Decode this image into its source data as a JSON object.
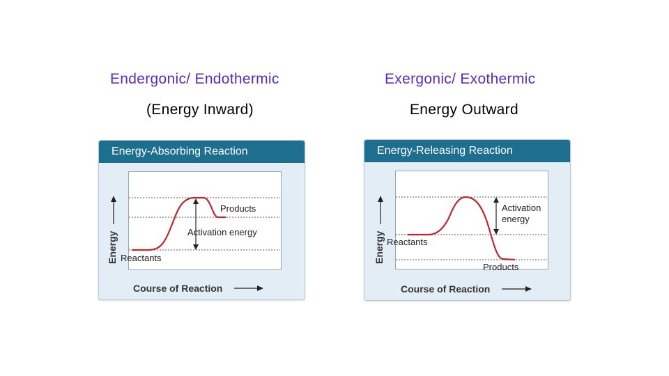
{
  "headings": {
    "left_title": "Endergonic/ Endothermic",
    "left_subtitle": "(Energy Inward)",
    "right_title": "Exergonic/ Exothermic",
    "right_subtitle": "Energy Outward"
  },
  "left_diagram": {
    "header": "Energy-Absorbing Reaction",
    "y_axis": "Energy",
    "x_axis": "Course of Reaction",
    "products_label": "Products",
    "activation_label": "Activation energy",
    "reactants_label": "Reactants"
  },
  "right_diagram": {
    "header": "Energy-Releasing Reaction",
    "y_axis": "Energy",
    "x_axis": "Course of Reaction",
    "activation_label_line1": "Activation",
    "activation_label_line2": "energy",
    "reactants_label": "Reactants",
    "products_label": "Products"
  },
  "colors": {
    "curve": "#c0262d",
    "header_bg": "#1d6e8f",
    "panel_bg": "#e3edf6",
    "heading_accent": "#5b2bc0"
  }
}
